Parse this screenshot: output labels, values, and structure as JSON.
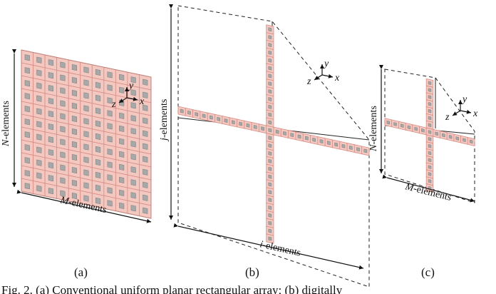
{
  "panels": [
    {
      "id": "a",
      "label": "(a)",
      "dim_left_var": "N",
      "dim_left_suffix": "-elements",
      "dim_bottom_var": "M",
      "dim_bottom_suffix": "-elements"
    },
    {
      "id": "b",
      "label": "(b)",
      "dim_left_var": "j",
      "dim_left_suffix": "-elements",
      "dim_bottom_var": "i",
      "dim_bottom_suffix": "-elements"
    },
    {
      "id": "c",
      "label": "(c)",
      "dim_left_var": "N",
      "dim_left_suffix": "-elements",
      "dim_bottom_var": "M",
      "dim_bottom_suffix": "-elements"
    }
  ],
  "axes": {
    "y": "y",
    "z": "z",
    "x": "x"
  },
  "caption": "Fig. 2. (a) Conventional uniform planar rectangular array; (b) digitally",
  "colors": {
    "element_fill": "#f3c8c0",
    "element_border": "#d98d85",
    "patch": "#a8a8a8",
    "line": "#222222"
  }
}
